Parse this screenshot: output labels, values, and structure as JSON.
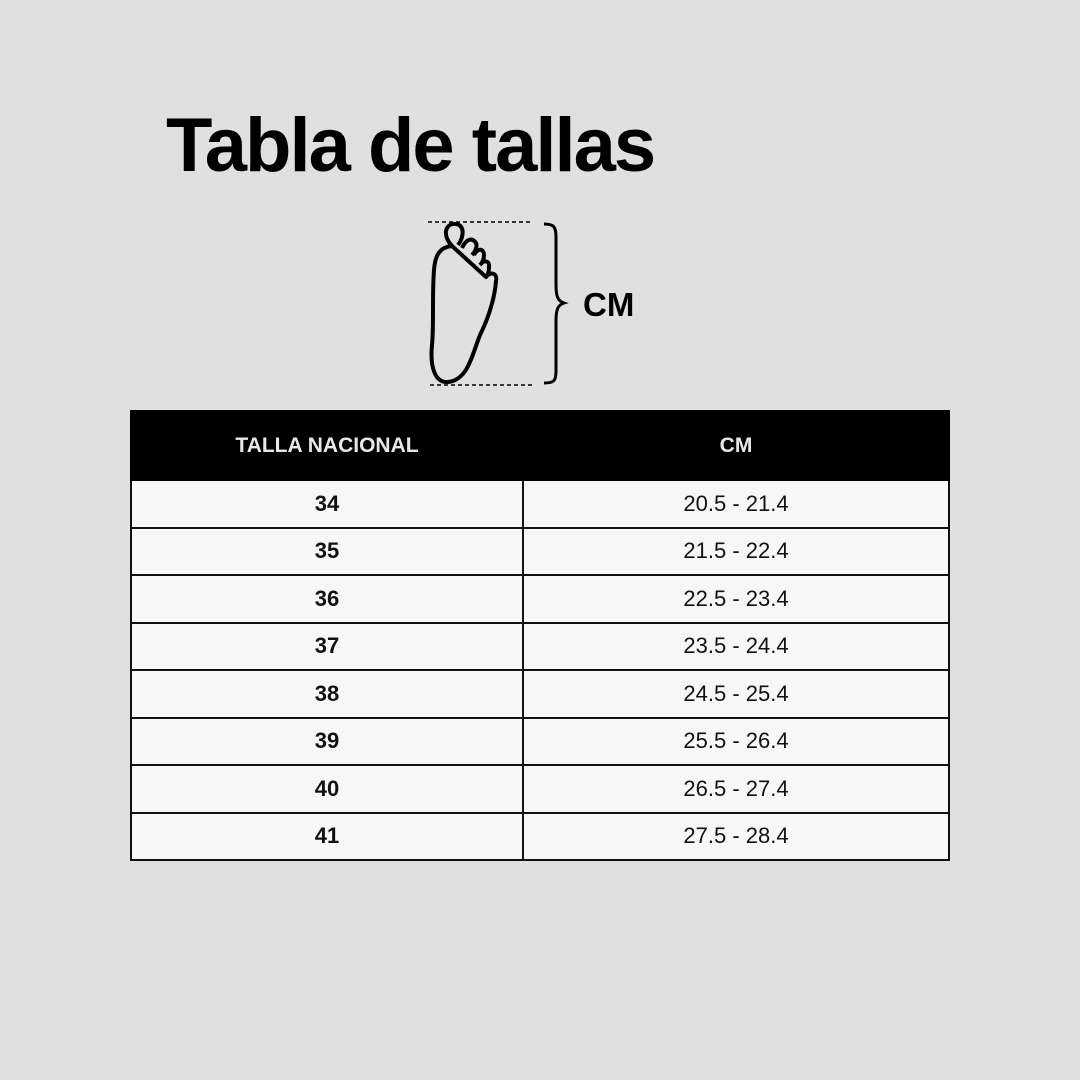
{
  "title": "Tabla de tallas",
  "diagram": {
    "icon": "foot-icon",
    "label": "CM"
  },
  "table": {
    "headers": [
      "TALLA NACIONAL",
      "CM"
    ],
    "rows": [
      {
        "size": "34",
        "cm": "20.5 - 21.4"
      },
      {
        "size": "35",
        "cm": "21.5 - 22.4"
      },
      {
        "size": "36",
        "cm": "22.5 - 23.4"
      },
      {
        "size": "37",
        "cm": "23.5 - 24.4"
      },
      {
        "size": "38",
        "cm": "24.5 - 25.4"
      },
      {
        "size": "39",
        "cm": "25.5 - 26.4"
      },
      {
        "size": "40",
        "cm": "26.5 - 27.4"
      },
      {
        "size": "41",
        "cm": "27.5 - 28.4"
      }
    ]
  }
}
